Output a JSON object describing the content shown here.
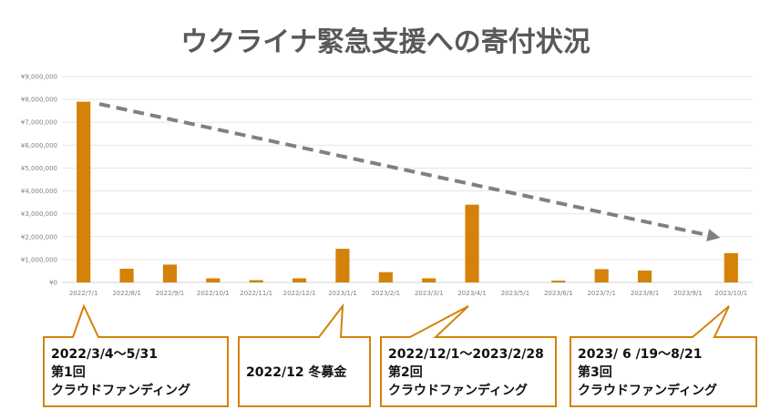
{
  "chart_data": {
    "type": "bar",
    "title": "ウクライナ緊急支援への寄付状況",
    "categories": [
      "2022/7/1",
      "2022/8/1",
      "2022/9/1",
      "2022/10/1",
      "2022/11/1",
      "2022/12/1",
      "2023/1/1",
      "2023/2/1",
      "2023/3/1",
      "2023/4/1",
      "2023/5/1",
      "2023/6/1",
      "2023/7/1",
      "2023/8/1",
      "2023/9/1",
      "2023/10/1"
    ],
    "values": [
      7900000,
      600000,
      780000,
      180000,
      100000,
      180000,
      1470000,
      450000,
      180000,
      3400000,
      0,
      80000,
      580000,
      520000,
      0,
      1280000
    ],
    "ylim": [
      0,
      9000000
    ],
    "yticks": [
      "¥0",
      "¥1,000,000",
      "¥2,000,000",
      "¥3,000,000",
      "¥4,000,000",
      "¥5,000,000",
      "¥6,000,000",
      "¥7,000,000",
      "¥8,000,000",
      "¥9,000,000"
    ],
    "grid": true,
    "bar_color": "#D4820A",
    "trend_color": "#808080",
    "trend": {
      "from_category": "2022/8/1",
      "from_value": 7800000,
      "to_category": "2023/10/1",
      "to_value": 1950000
    },
    "annotations": [
      {
        "lines": [
          "2022/3/4～5/31",
          "第1回",
          "クラウドファンディング"
        ],
        "target_category": "2022/7/1"
      },
      {
        "lines": [
          "2022/12 冬募金"
        ],
        "target_category": "2023/1/1"
      },
      {
        "lines": [
          "2022/12/1～2023/2/28",
          "第2回",
          "クラウドファンディング"
        ],
        "target_category": "2023/4/1"
      },
      {
        "lines": [
          "2023/ 6 /19～8/21",
          "第3回",
          "クラウドファンディング"
        ],
        "target_category": "2023/10/1"
      }
    ]
  }
}
